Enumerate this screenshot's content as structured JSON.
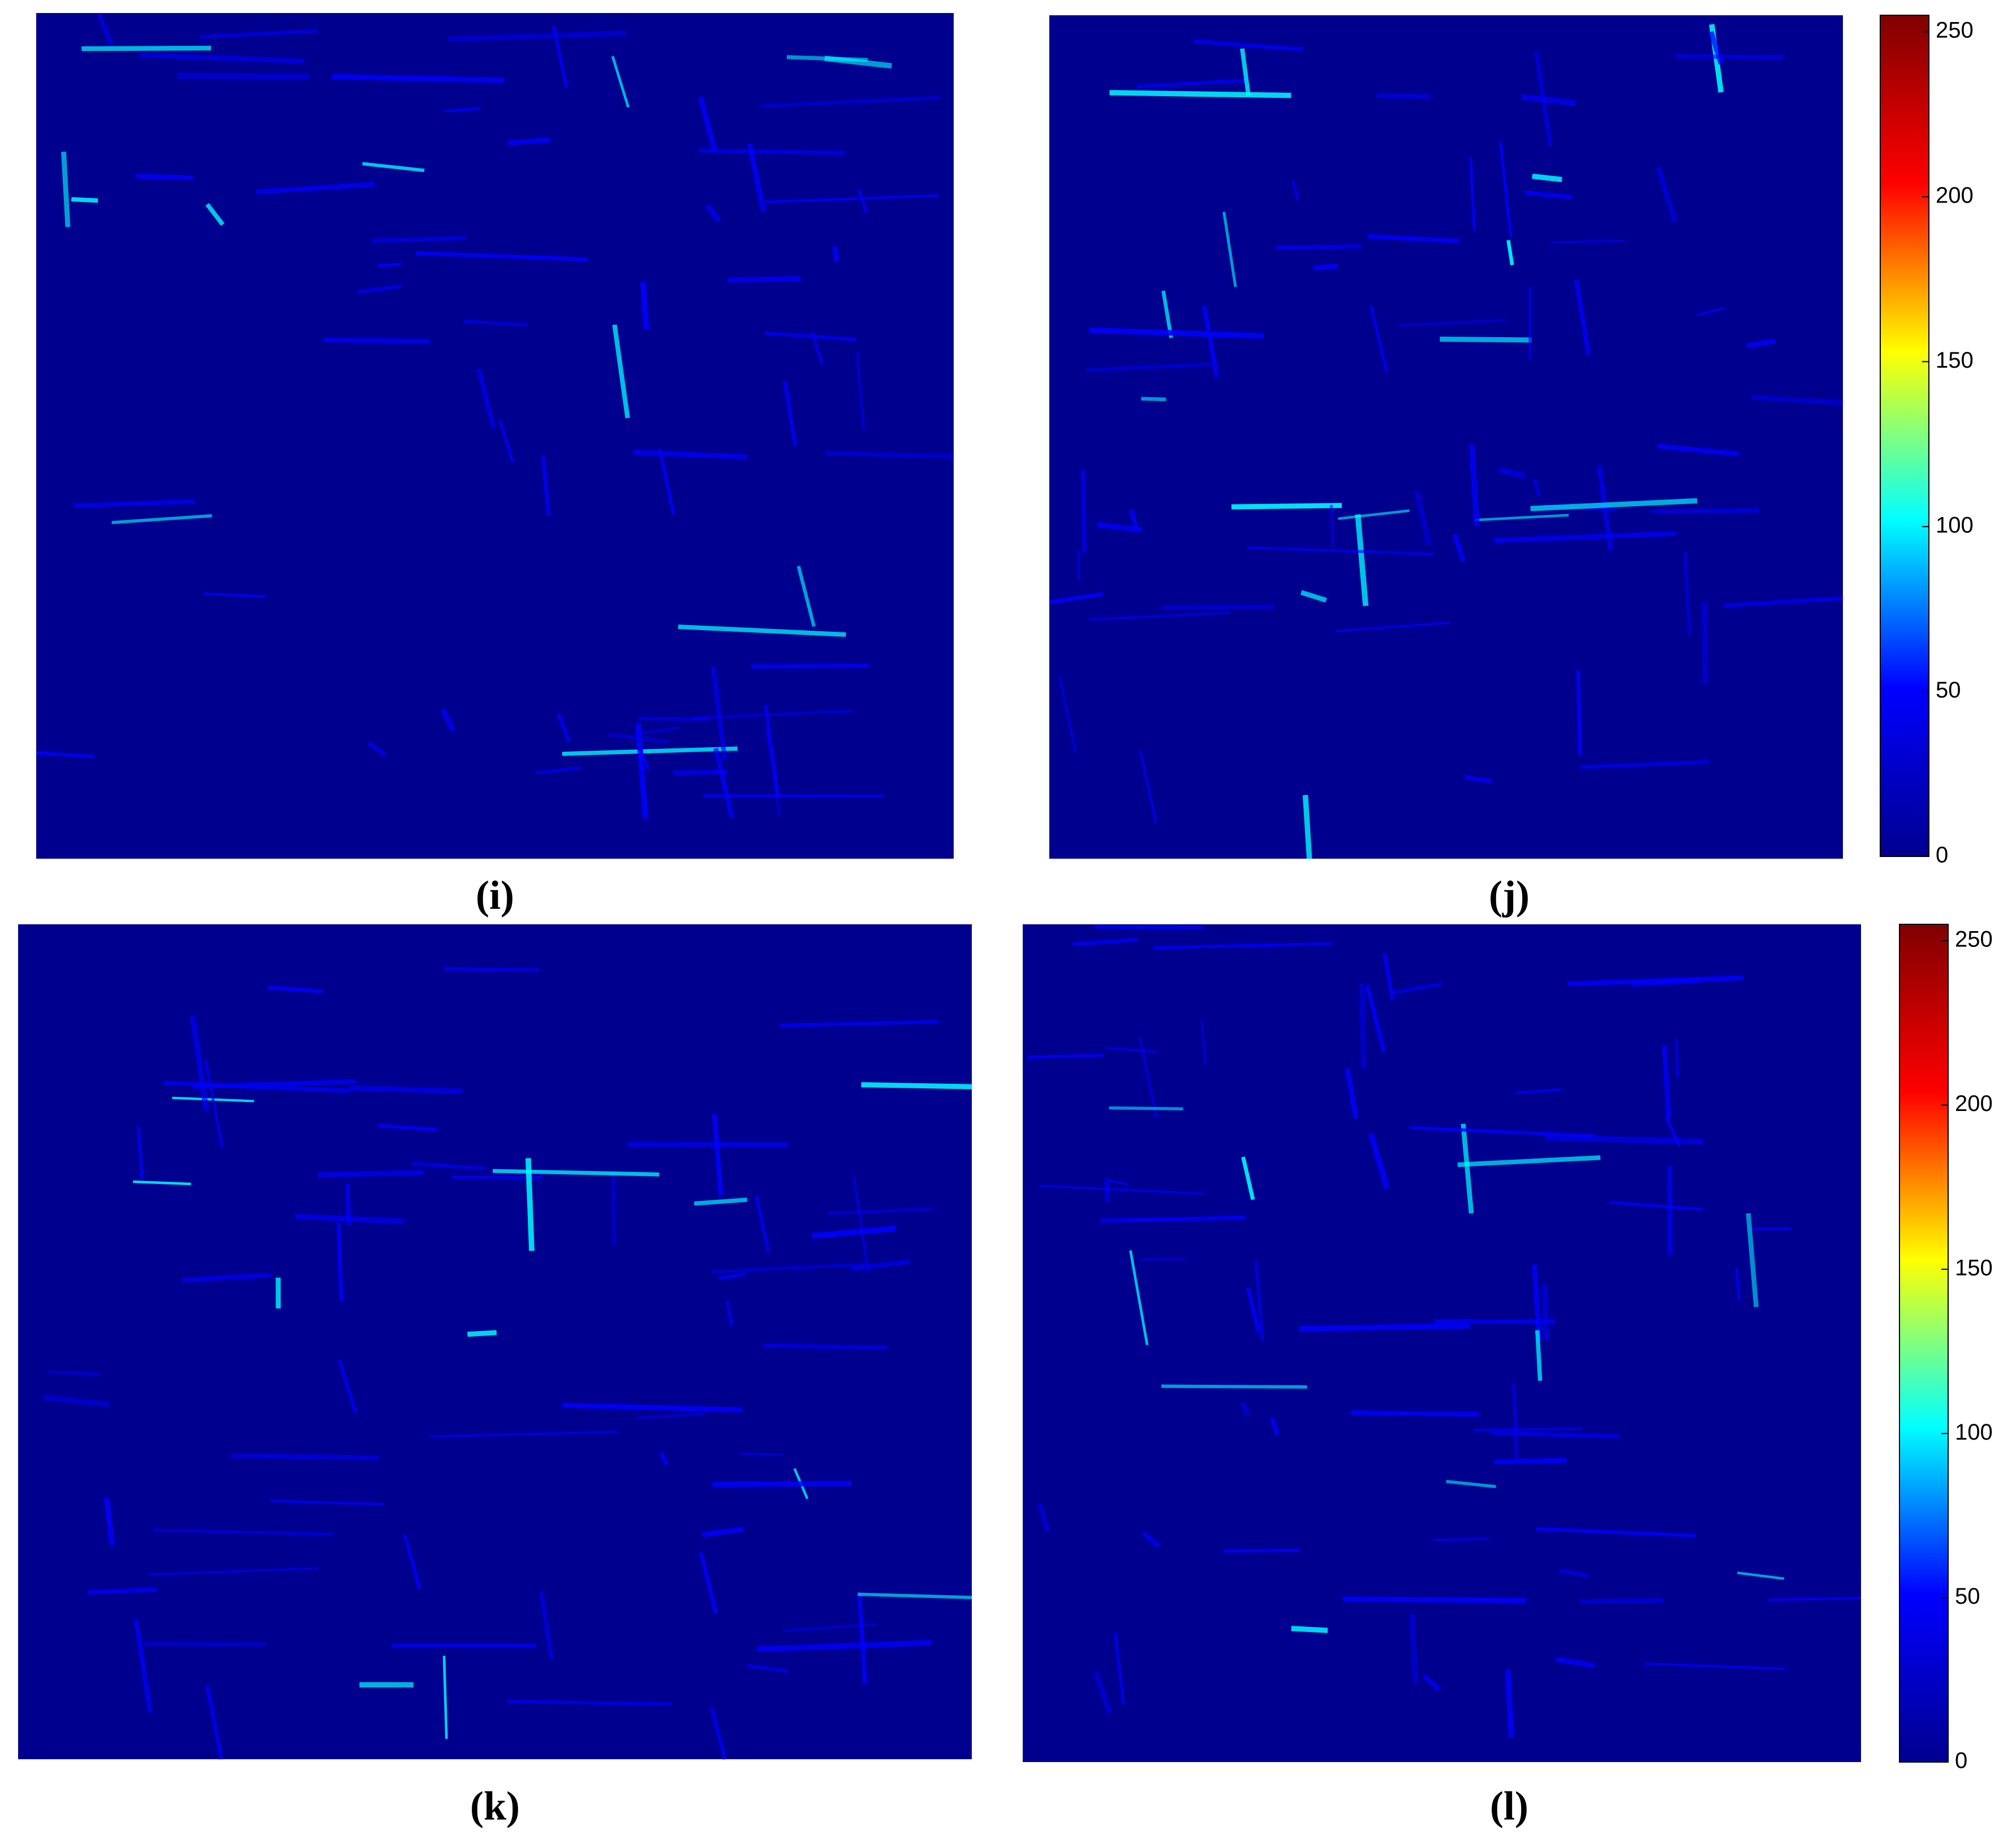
{
  "chart_data": [
    {
      "type": "heatmap",
      "label": "(i)",
      "colormap": [
        "#00008f",
        "#0000ff",
        "#00ffff",
        "#ffff00",
        "#ff0000",
        "#800000"
      ]
    },
    {
      "type": "heatmap",
      "label": "(j)",
      "colormap": [
        "#00008f",
        "#0000ff",
        "#00ffff",
        "#ffff00",
        "#ff0000",
        "#800000"
      ],
      "colorbar": {
        "ylim": [
          0,
          255
        ],
        "yticks": [
          0,
          50,
          100,
          150,
          200,
          250
        ]
      }
    },
    {
      "type": "heatmap",
      "label": "(k)",
      "colormap": [
        "#00008f",
        "#0000ff",
        "#00ffff",
        "#ffff00",
        "#ff0000",
        "#800000"
      ]
    },
    {
      "type": "heatmap",
      "label": "(l)",
      "colormap": [
        "#00008f",
        "#0000ff",
        "#00ffff",
        "#ffff00",
        "#ff0000",
        "#800000"
      ],
      "colorbar": {
        "ylim": [
          0,
          255
        ],
        "yticks": [
          0,
          50,
          100,
          150,
          200,
          250
        ]
      }
    }
  ]
}
